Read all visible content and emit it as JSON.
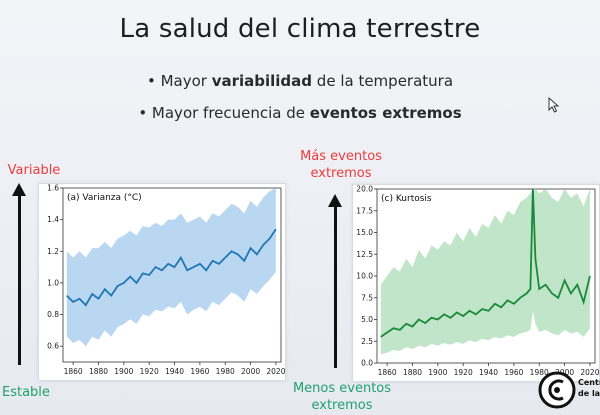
{
  "slide": {
    "title": "La salud del clima terrestre",
    "bullets": [
      {
        "prefix": "• Mayor ",
        "bold": "variabilidad",
        "suffix": " de la temperatura"
      },
      {
        "prefix": "• Mayor frecuencia de ",
        "bold": "eventos extremos",
        "suffix": ""
      }
    ],
    "left_axis": {
      "top_label": "Variable",
      "bottom_label": "Estable"
    },
    "right_axis": {
      "top_label_line1": "Más eventos",
      "top_label_line2": "extremos",
      "bottom_label_line1": "Menos eventos",
      "bottom_label_line2": "extremos"
    },
    "logo": {
      "text_line1": "Centro",
      "text_line2": "de la C"
    },
    "icons": [
      "mouse-cursor-icon",
      "arrow-up-icon",
      "logo-icon"
    ]
  },
  "chart_data": [
    {
      "type": "line",
      "title": "(a) Varianza (°C)",
      "color_line": "#1f77b4",
      "color_band": "#aed0ef",
      "xlim": [
        1852,
        2024
      ],
      "ylim": [
        0.5,
        1.6
      ],
      "xticks": [
        1860,
        1880,
        1900,
        1920,
        1940,
        1960,
        1980,
        2000,
        2020
      ],
      "yticks": [
        0.6,
        0.8,
        1.0,
        1.2,
        1.4,
        1.6
      ],
      "x": [
        1855,
        1860,
        1865,
        1870,
        1875,
        1880,
        1885,
        1890,
        1895,
        1900,
        1905,
        1910,
        1915,
        1920,
        1925,
        1930,
        1935,
        1940,
        1945,
        1950,
        1955,
        1960,
        1965,
        1970,
        1975,
        1980,
        1985,
        1990,
        1995,
        2000,
        2005,
        2010,
        2015,
        2020
      ],
      "y": [
        0.92,
        0.88,
        0.9,
        0.86,
        0.93,
        0.9,
        0.96,
        0.92,
        0.98,
        1.0,
        1.04,
        1.0,
        1.06,
        1.05,
        1.1,
        1.08,
        1.12,
        1.1,
        1.16,
        1.08,
        1.1,
        1.12,
        1.08,
        1.14,
        1.12,
        1.16,
        1.2,
        1.18,
        1.14,
        1.22,
        1.18,
        1.24,
        1.28,
        1.34
      ],
      "y_low": [
        0.66,
        0.62,
        0.64,
        0.6,
        0.66,
        0.64,
        0.7,
        0.66,
        0.72,
        0.74,
        0.77,
        0.74,
        0.8,
        0.79,
        0.83,
        0.82,
        0.85,
        0.84,
        0.88,
        0.8,
        0.83,
        0.85,
        0.82,
        0.88,
        0.86,
        0.9,
        0.94,
        0.92,
        0.88,
        0.96,
        0.93,
        0.98,
        1.02,
        1.07
      ],
      "y_high": [
        1.2,
        1.16,
        1.2,
        1.16,
        1.22,
        1.22,
        1.26,
        1.22,
        1.28,
        1.3,
        1.33,
        1.3,
        1.36,
        1.35,
        1.38,
        1.36,
        1.4,
        1.4,
        1.44,
        1.38,
        1.4,
        1.42,
        1.38,
        1.44,
        1.42,
        1.46,
        1.5,
        1.48,
        1.44,
        1.52,
        1.48,
        1.54,
        1.58,
        1.6
      ]
    },
    {
      "type": "line",
      "title": "(c) Kurtosis",
      "color_line": "#1a8a3a",
      "color_band": "#b5e0c0",
      "xlim": [
        1852,
        2024
      ],
      "ylim": [
        0,
        20
      ],
      "xticks": [
        1860,
        1880,
        1900,
        1920,
        1940,
        1960,
        1980,
        2000,
        2020
      ],
      "yticks": [
        0.0,
        2.5,
        5.0,
        7.5,
        10.0,
        12.5,
        15.0,
        17.5,
        20.0
      ],
      "x": [
        1855,
        1860,
        1865,
        1870,
        1875,
        1880,
        1885,
        1890,
        1895,
        1900,
        1905,
        1910,
        1915,
        1920,
        1925,
        1930,
        1935,
        1940,
        1945,
        1950,
        1955,
        1960,
        1965,
        1970,
        1973,
        1975,
        1977,
        1980,
        1985,
        1990,
        1995,
        2000,
        2005,
        2010,
        2015,
        2020
      ],
      "y": [
        3.0,
        3.5,
        4.0,
        3.8,
        4.5,
        4.2,
        5.0,
        4.6,
        5.2,
        5.0,
        5.6,
        5.2,
        5.8,
        5.4,
        6.0,
        5.6,
        6.2,
        6.0,
        6.8,
        6.4,
        7.2,
        6.8,
        7.5,
        8.0,
        8.5,
        20.0,
        12.0,
        8.5,
        9.0,
        8.0,
        7.5,
        9.5,
        8.0,
        9.0,
        7.0,
        10.0
      ],
      "y_low": [
        1.0,
        1.2,
        1.5,
        1.4,
        1.8,
        1.6,
        2.0,
        1.8,
        2.2,
        2.0,
        2.3,
        2.1,
        2.4,
        2.2,
        2.6,
        2.4,
        2.8,
        2.6,
        3.0,
        2.8,
        3.2,
        3.0,
        3.4,
        3.6,
        3.8,
        6.0,
        4.5,
        3.6,
        3.8,
        3.4,
        3.2,
        3.8,
        3.4,
        3.6,
        3.0,
        4.0
      ],
      "y_high": [
        9.0,
        10.0,
        11.0,
        10.5,
        12.0,
        11.0,
        13.0,
        12.0,
        13.5,
        13.0,
        14.0,
        13.5,
        15.0,
        14.0,
        15.5,
        14.5,
        16.0,
        15.5,
        17.0,
        16.0,
        17.5,
        17.0,
        18.5,
        19.0,
        19.5,
        20.0,
        20.0,
        19.5,
        20.0,
        19.0,
        18.5,
        20.0,
        19.0,
        19.5,
        18.0,
        20.0
      ]
    }
  ]
}
